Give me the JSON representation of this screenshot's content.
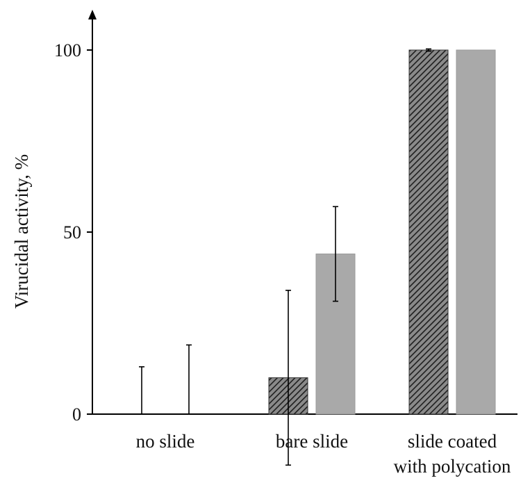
{
  "chart_data": {
    "type": "bar",
    "title": "",
    "xlabel": "",
    "ylabel": "Virucidal activity, %",
    "ylim": [
      0,
      110
    ],
    "yticks": [
      0,
      50,
      100
    ],
    "grid": false,
    "categories": [
      [
        "no slide"
      ],
      [
        "bare slide"
      ],
      [
        "slide coated",
        "with polycation"
      ]
    ],
    "series": [
      {
        "values": [
          0,
          10,
          100
        ],
        "errors": [
          13,
          24,
          0.3
        ],
        "fill": "hatched",
        "color": "#2a2a2a"
      },
      {
        "values": [
          0,
          44,
          100
        ],
        "errors": [
          19,
          13,
          0
        ],
        "fill": "solid",
        "color": "#a9a9a9"
      }
    ]
  }
}
